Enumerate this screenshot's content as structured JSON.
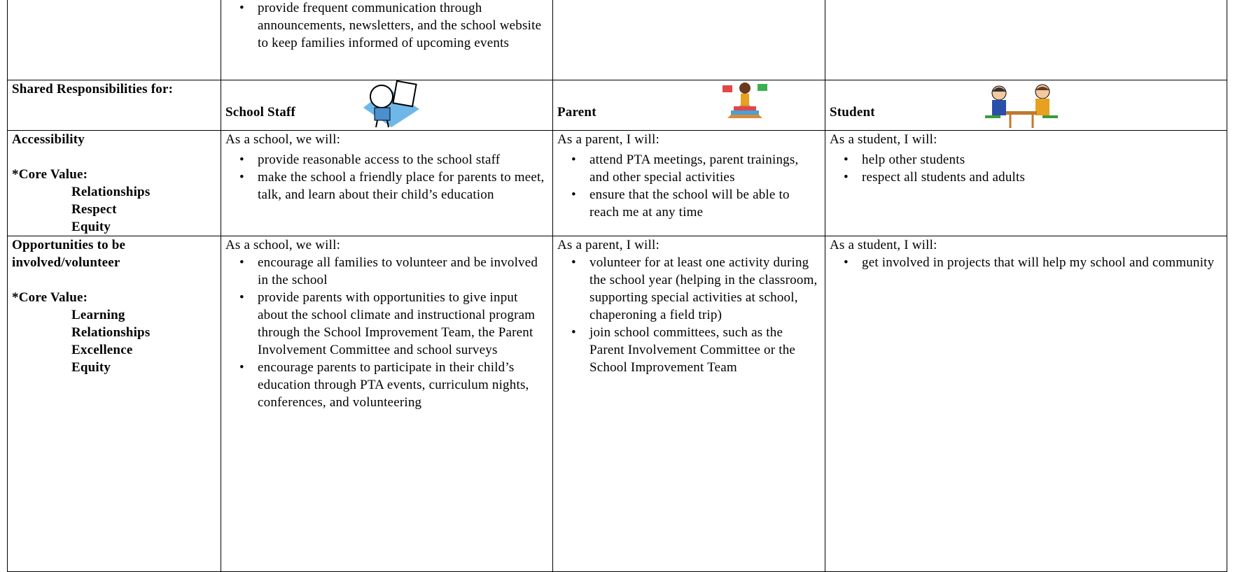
{
  "table": {
    "continuation": {
      "bullets": [
        "provide frequent communication through announcements, newsletters, and the school website to keep families informed of upcoming events"
      ]
    },
    "header": {
      "label": "Shared Responsibilities for:",
      "columns": [
        "School Staff",
        "Parent",
        "Student"
      ]
    },
    "rows": [
      {
        "topic": "Accessibility",
        "core_value_label": "*Core Value:",
        "core_values": [
          "Relationships",
          "Respect",
          "Equity"
        ],
        "cells": [
          {
            "intro": "As a school,  we will:",
            "bullets": [
              "provide reasonable access to the school staff",
              "make the school a friendly place for parents to meet, talk, and learn about their child’s education"
            ]
          },
          {
            "intro": "As a parent,  I will:",
            "bullets": [
              "attend PTA meetings, parent trainings, and other special activities",
              "ensure that the school will be able to reach me at any time"
            ]
          },
          {
            "intro": "As a student, I will:",
            "bullets": [
              "help other students",
              "respect all students and adults"
            ]
          }
        ]
      },
      {
        "topic": "Opportunities to be involved/volunteer",
        "core_value_label": "*Core Value:",
        "core_values": [
          "Learning",
          "Relationships",
          "Excellence",
          "Equity"
        ],
        "cells": [
          {
            "intro": "As a school, we will:",
            "bullets": [
              "encourage all families to volunteer and be involved in the school",
              "provide parents with opportunities to give input about the school climate and instructional program through the School Improvement Team, the Parent Involvement Committee and school surveys",
              "encourage parents to participate in their child’s education through PTA events, curriculum nights, conferences, and volunteering"
            ]
          },
          {
            "intro": "As a parent, I will:",
            "bullets": [
              "volunteer for at least one activity during the school year (helping in the classroom, supporting special activities at school, chaperoning a field trip)",
              "join school committees, such as the Parent Involvement Committee or the School Improvement Team"
            ]
          },
          {
            "intro": "As a student, I will:",
            "bullets": [
              "get involved in projects that will help my school and community"
            ]
          }
        ]
      }
    ]
  }
}
